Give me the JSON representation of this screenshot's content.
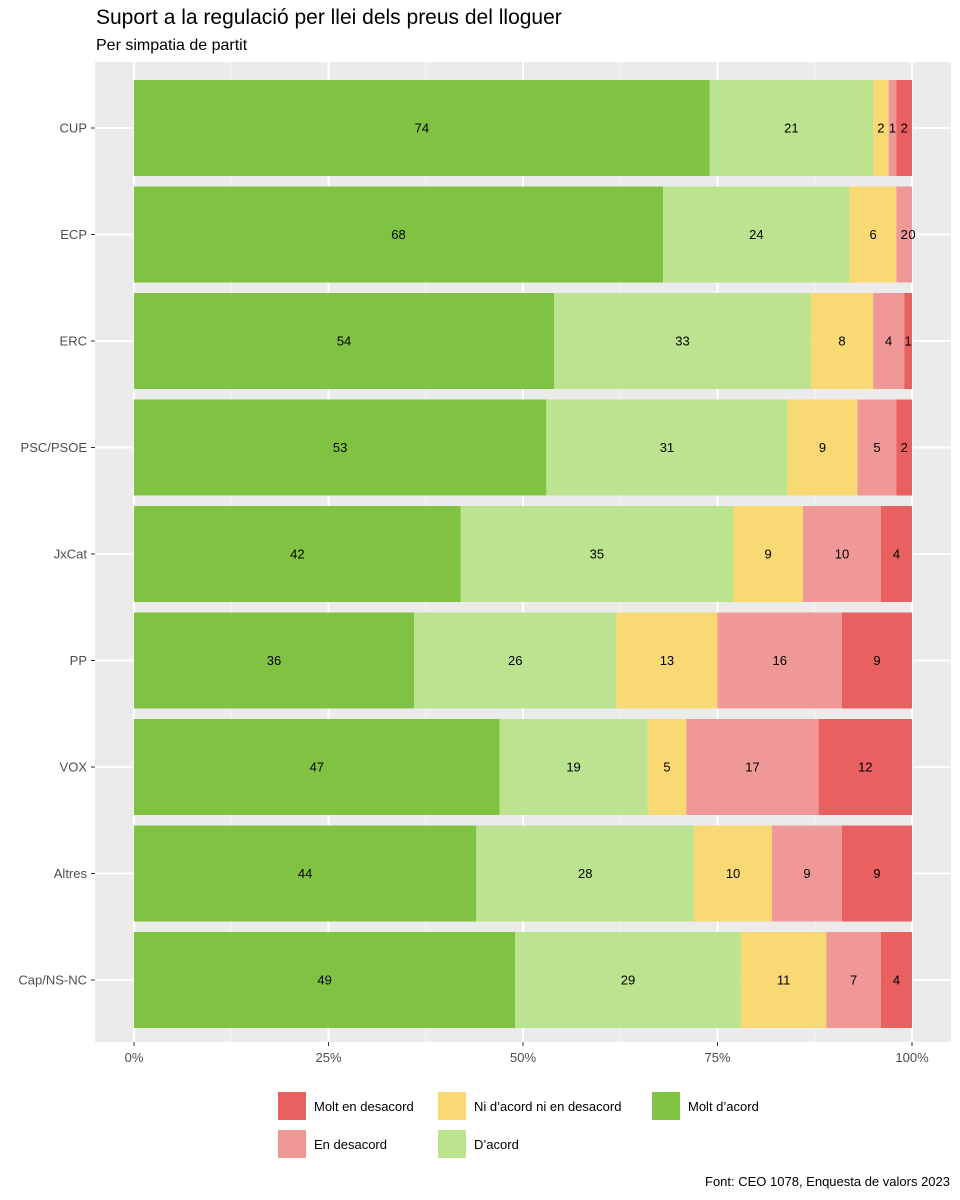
{
  "chart_data": {
    "type": "bar",
    "orientation": "horizontal",
    "stacked": "percent",
    "title": "Suport a la regulació per llei dels preus del lloguer",
    "subtitle": "Per simpatia de partit",
    "caption": "Font: CEO 1078, Enquesta de valors 2023",
    "categories": [
      "CUP",
      "ECP",
      "ERC",
      "PSC/PSOE",
      "JxCat",
      "PP",
      "VOX",
      "Altres",
      "Cap/NS-NC"
    ],
    "series": [
      {
        "name": "Molt d’acord",
        "color": "#80c342",
        "values": [
          74,
          68,
          54,
          53,
          42,
          36,
          47,
          44,
          49
        ]
      },
      {
        "name": "D’acord",
        "color": "#bce390",
        "values": [
          21,
          24,
          33,
          31,
          35,
          26,
          19,
          28,
          29
        ]
      },
      {
        "name": "Ni d’acord ni en desacord",
        "color": "#f8d974",
        "values": [
          2,
          6,
          8,
          9,
          9,
          13,
          5,
          10,
          11
        ]
      },
      {
        "name": "En desacord",
        "color": "#f09898",
        "values": [
          1,
          2,
          4,
          5,
          10,
          16,
          17,
          9,
          7
        ]
      },
      {
        "name": "Molt en desacord",
        "color": "#e86060",
        "values": [
          2,
          0,
          1,
          2,
          4,
          9,
          12,
          9,
          4
        ]
      }
    ],
    "x_ticks": [
      "0%",
      "25%",
      "50%",
      "75%",
      "100%"
    ],
    "xlim": [
      0,
      100
    ],
    "grid": true,
    "legend_position": "bottom",
    "legend_order": [
      "Molt en desacord",
      "En desacord",
      "Ni d’acord ni en desacord",
      "D’acord",
      "Molt d’acord"
    ]
  }
}
